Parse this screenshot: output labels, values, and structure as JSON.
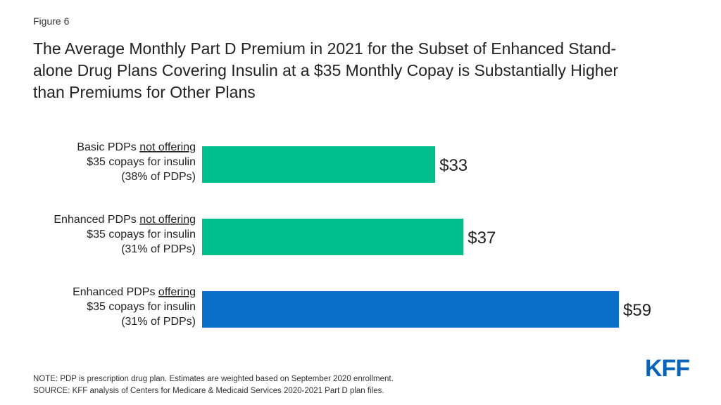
{
  "figure_label": "Figure 6",
  "title_lines": [
    "The Average Monthly Part D Premium in 2021 for the Subset of Enhanced Stand-",
    "alone Drug Plans Covering Insulin at a $35 Monthly Copay is Substantially Higher",
    "than Premiums for Other Plans"
  ],
  "chart_data": {
    "type": "bar",
    "orientation": "horizontal",
    "title": "The Average Monthly Part D Premium in 2021 for the Subset of Enhanced Stand-alone Drug Plans Covering Insulin at a $35 Monthly Copay is Substantially Higher than Premiums for Other Plans",
    "categories": [
      {
        "line1_pre": "Basic PDPs ",
        "line1_under": "not offering",
        "line2": "$35 copays for insulin",
        "line3": "(38% of PDPs)"
      },
      {
        "line1_pre": "Enhanced PDPs ",
        "line1_under": "not offering",
        "line2": "$35 copays for insulin",
        "line3": "(31% of PDPs)"
      },
      {
        "line1_pre": "Enhanced PDPs ",
        "line1_under": "offering",
        "line2": "$35 copays for insulin",
        "line3": "(31% of PDPs)"
      }
    ],
    "values": [
      33,
      37,
      59
    ],
    "data_labels": [
      "$33",
      "$37",
      "$59"
    ],
    "colors": [
      "#00bf8c",
      "#00bf8c",
      "#0b6fc9"
    ],
    "xlim": [
      0,
      59
    ],
    "grid": false,
    "legend": "none"
  },
  "footer": {
    "note": "NOTE: PDP is prescription drug plan. Estimates are weighted based on September 2020 enrollment.",
    "source": "SOURCE: KFF analysis of Centers for Medicare & Medicaid Services 2020-2021 Part D plan files."
  },
  "logo_text": "KFF",
  "colors": {
    "logo": "#0b63b8"
  }
}
